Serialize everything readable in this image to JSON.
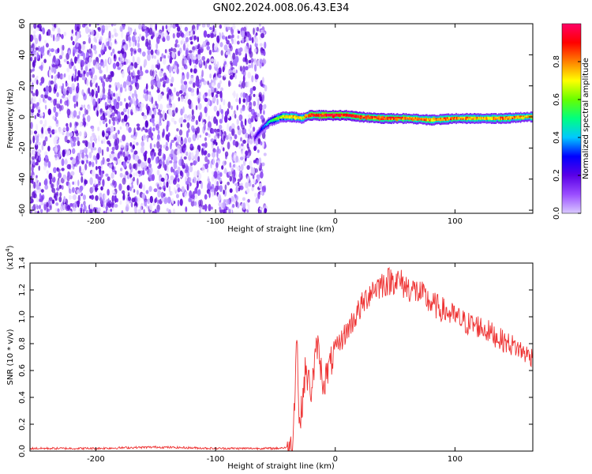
{
  "figure": {
    "title": "GN02.2024.008.06.43.E34"
  },
  "chart_data": [
    {
      "type": "heatmap",
      "name": "spectrogram",
      "xlabel": "Height of straight line (km)",
      "ylabel": "Frequency (Hz)",
      "xlim": [
        -255,
        165
      ],
      "ylim": [
        -62,
        60
      ],
      "x_ticks": [
        -200,
        -100,
        0,
        100
      ],
      "y_ticks": [
        60,
        40,
        20,
        0,
        -20,
        -40,
        -60
      ],
      "grid": false,
      "colorbar": {
        "label": "Normalized spectral amplitude",
        "range": [
          0,
          1
        ],
        "ticks": [
          "0.0",
          "0.2",
          "0.4",
          "0.6",
          "0.8"
        ],
        "colormap": [
          "#d9c9ff",
          "#9a4dff",
          "#5a00e6",
          "#0000ff",
          "#00c8ff",
          "#00ff80",
          "#66ff00",
          "#ffff00",
          "#ff8000",
          "#ff0000",
          "#ff0066"
        ]
      },
      "noise_region": {
        "x_from": -255,
        "x_to": -60,
        "dominant_level": 0.12
      },
      "signal_trace": {
        "x": [
          -68,
          -62,
          -55,
          -45,
          -35,
          -28,
          -22,
          -10,
          0,
          10,
          20,
          40,
          60,
          80,
          100,
          120,
          140,
          160
        ],
        "center_hz": [
          -14,
          -8,
          -3,
          0,
          0,
          -1,
          1,
          1,
          1,
          1,
          0,
          -1,
          -1,
          -2,
          -1,
          -1,
          -1,
          0
        ],
        "peak_level": [
          0.2,
          0.3,
          0.5,
          0.7,
          0.8,
          0.7,
          0.95,
          1.0,
          1.0,
          1.0,
          0.95,
          0.9,
          0.9,
          0.85,
          0.85,
          0.8,
          0.85,
          0.8
        ]
      }
    },
    {
      "type": "line",
      "name": "snr",
      "xlabel": "Height of straight line (km)",
      "ylabel": "SNR (10 * v/v)",
      "y_multiplier": "(x10",
      "y_multiplier_exp": "4",
      "y_multiplier_close": ")",
      "xlim": [
        -255,
        165
      ],
      "ylim": [
        0,
        1.4
      ],
      "x_ticks": [
        -200,
        -100,
        0,
        100
      ],
      "y_ticks": [
        "0.0",
        "0.2",
        "0.4",
        "0.6",
        "0.8",
        "1.0",
        "1.2",
        "1.4"
      ],
      "grid": false,
      "color": "#ee3333",
      "x": [
        -255,
        -200,
        -150,
        -100,
        -50,
        -36,
        -34,
        -32,
        -30,
        -25,
        -20,
        -15,
        -10,
        0,
        10,
        20,
        30,
        40,
        50,
        60,
        70,
        80,
        90,
        100,
        110,
        120,
        130,
        140,
        150,
        160,
        165
      ],
      "values": [
        0.02,
        0.02,
        0.03,
        0.02,
        0.02,
        0.03,
        0.4,
        0.9,
        0.15,
        0.6,
        0.45,
        0.8,
        0.5,
        0.75,
        0.9,
        1.05,
        1.2,
        1.25,
        1.28,
        1.22,
        1.18,
        1.1,
        1.05,
        1.0,
        0.95,
        0.93,
        0.88,
        0.82,
        0.78,
        0.72,
        0.7
      ]
    }
  ]
}
